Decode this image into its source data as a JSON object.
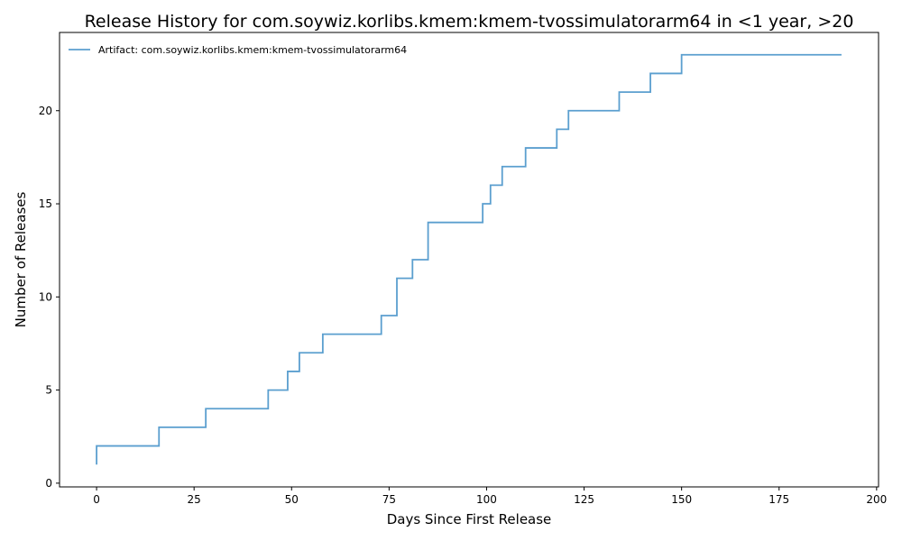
{
  "chart_data": {
    "type": "line",
    "step": "post",
    "title": "Release History for com.soywiz.korlibs.kmem:kmem-tvossimulatorarm64 in <1 year, >20",
    "xlabel": "Days Since First Release",
    "ylabel": "Number of Releases",
    "xlim": [
      -9.5,
      200.5
    ],
    "ylim": [
      -0.2,
      24.2
    ],
    "xticks": [
      0,
      25,
      50,
      75,
      100,
      125,
      150,
      175,
      200
    ],
    "yticks": [
      0,
      5,
      10,
      15,
      20
    ],
    "grid": false,
    "legend_position": "top-left",
    "series": [
      {
        "name": "Artifact: com.soywiz.korlibs.kmem:kmem-tvossimulatorarm64",
        "color": "#5b9fcf",
        "x": [
          0,
          0,
          16,
          28,
          44,
          49,
          52,
          58,
          73,
          77,
          81,
          85,
          99,
          101,
          104,
          110,
          118,
          121,
          134,
          142,
          150,
          191
        ],
        "y": [
          1,
          2,
          3,
          4,
          5,
          6,
          7,
          8,
          9,
          11,
          12,
          14,
          15,
          16,
          17,
          18,
          19,
          20,
          21,
          22,
          23,
          23
        ]
      }
    ]
  }
}
